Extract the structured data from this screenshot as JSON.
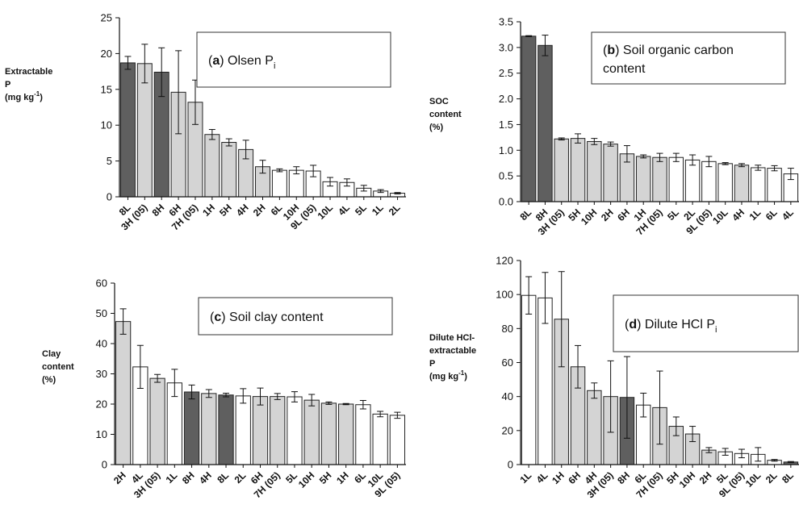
{
  "charts": [
    {
      "panel": "a",
      "type": "bar",
      "title_letter": "a",
      "title_text": "Olsen P",
      "title_sub": "i",
      "ylabel_lines": [
        "Extractable",
        "P",
        "(mg kg-1)"
      ],
      "ylim": [
        0,
        25
      ],
      "yticks": [
        0,
        5,
        10,
        15,
        20,
        25
      ],
      "categories": [
        "8L",
        "3H (05)",
        "8H",
        "6H",
        "7H (05)",
        "1H",
        "5H",
        "4H",
        "2H",
        "6L",
        "10H",
        "9L (05)",
        "10L",
        "4L",
        "5L",
        "1L",
        "2L"
      ],
      "values": [
        18.7,
        18.6,
        17.4,
        14.6,
        13.2,
        8.7,
        7.6,
        6.6,
        4.2,
        3.7,
        3.7,
        3.6,
        2.1,
        2.0,
        1.2,
        0.8,
        0.5
      ],
      "errors": [
        0.9,
        2.7,
        3.4,
        5.8,
        3.1,
        0.7,
        0.5,
        1.3,
        0.9,
        0.2,
        0.5,
        0.8,
        0.6,
        0.5,
        0.4,
        0.2,
        0.1
      ],
      "fills": [
        "dark",
        "light",
        "dark",
        "light",
        "light",
        "light",
        "light",
        "light",
        "light",
        "white",
        "white",
        "white",
        "white",
        "white",
        "white",
        "white",
        "white"
      ]
    },
    {
      "panel": "b",
      "type": "bar",
      "title_letter": "b",
      "title_text": "Soil organic carbon",
      "title_line2": "content",
      "ylabel_lines": [
        "SOC",
        "content",
        "(%)"
      ],
      "ylim": [
        0,
        3.5
      ],
      "yticks": [
        "0.0",
        "0.5",
        "1.0",
        "1.5",
        "2.0",
        "2.5",
        "3.0",
        "3.5"
      ],
      "categories": [
        "8L",
        "8H",
        "3H (05)",
        "5H",
        "10H",
        "2H",
        "6H",
        "1H",
        "7H (05)",
        "5L",
        "2L",
        "9L (05)",
        "10L",
        "4H",
        "1L",
        "6L",
        "4L"
      ],
      "values": [
        3.22,
        3.04,
        1.22,
        1.23,
        1.17,
        1.12,
        0.93,
        0.88,
        0.86,
        0.86,
        0.81,
        0.78,
        0.74,
        0.71,
        0.66,
        0.65,
        0.54
      ],
      "errors": [
        0.01,
        0.2,
        0.02,
        0.09,
        0.06,
        0.04,
        0.16,
        0.03,
        0.08,
        0.08,
        0.1,
        0.1,
        0.02,
        0.03,
        0.05,
        0.05,
        0.11
      ],
      "fills": [
        "dark",
        "dark",
        "light",
        "light",
        "light",
        "light",
        "light",
        "light",
        "light",
        "white",
        "white",
        "white",
        "white",
        "light",
        "white",
        "white",
        "white"
      ]
    },
    {
      "panel": "c",
      "type": "bar",
      "title_letter": "c",
      "title_text": "Soil clay content",
      "ylabel_lines": [
        "Clay",
        "content",
        "(%)"
      ],
      "ylim": [
        0,
        60
      ],
      "yticks": [
        0,
        10,
        20,
        30,
        40,
        50,
        60
      ],
      "categories": [
        "2H",
        "4L",
        "3H (05)",
        "1L",
        "8H",
        "4H",
        "8L",
        "2L",
        "6H",
        "7H (05)",
        "5L",
        "10H",
        "5H",
        "1H",
        "6L",
        "10L",
        "9L (05)"
      ],
      "values": [
        47.3,
        32.3,
        28.5,
        27.0,
        24.0,
        23.5,
        23.0,
        22.7,
        22.5,
        22.5,
        22.4,
        21.3,
        20.3,
        20.0,
        19.8,
        16.7,
        16.3
      ],
      "errors": [
        4.2,
        7.1,
        1.3,
        4.5,
        2.3,
        1.3,
        0.6,
        2.4,
        2.8,
        1.0,
        1.7,
        1.9,
        0.4,
        0.2,
        1.4,
        0.9,
        1.0
      ],
      "fills": [
        "light",
        "white",
        "light",
        "white",
        "dark",
        "light",
        "dark",
        "white",
        "light",
        "light",
        "white",
        "light",
        "light",
        "light",
        "white",
        "white",
        "white"
      ]
    },
    {
      "panel": "d",
      "type": "bar",
      "title_letter": "d",
      "title_text": "Dilute HCl P",
      "title_sub": "i",
      "ylabel_lines": [
        "Dilute HCl-",
        "extractable",
        "P",
        "(mg kg-1)"
      ],
      "ylim": [
        0,
        120
      ],
      "yticks": [
        0,
        20,
        40,
        60,
        80,
        100,
        120
      ],
      "categories": [
        "1L",
        "4L",
        "1H",
        "6H",
        "4H",
        "3H (05)",
        "8H",
        "6L",
        "7H (05)",
        "5H",
        "10H",
        "2H",
        "5L",
        "9L (05)",
        "10L",
        "2L",
        "8L"
      ],
      "values": [
        99.5,
        98.0,
        85.5,
        57.5,
        43.5,
        40.0,
        39.5,
        35.0,
        33.5,
        22.5,
        18.0,
        8.5,
        7.5,
        6.5,
        6.0,
        2.5,
        1.5
      ],
      "errors": [
        11.0,
        15.0,
        28.0,
        12.5,
        4.5,
        21.0,
        24.0,
        7.0,
        21.5,
        5.5,
        4.5,
        1.5,
        2.0,
        2.5,
        4.0,
        0.5,
        0.3
      ],
      "fills": [
        "white",
        "white",
        "light",
        "light",
        "light",
        "light",
        "dark",
        "white",
        "light",
        "light",
        "light",
        "light",
        "white",
        "white",
        "white",
        "white",
        "dark"
      ]
    }
  ],
  "colors": {
    "dark": "#5f5f5f",
    "light": "#d4d4d4",
    "white": "#ffffff",
    "stroke": "#222222"
  },
  "exponent_superscript": "-1"
}
